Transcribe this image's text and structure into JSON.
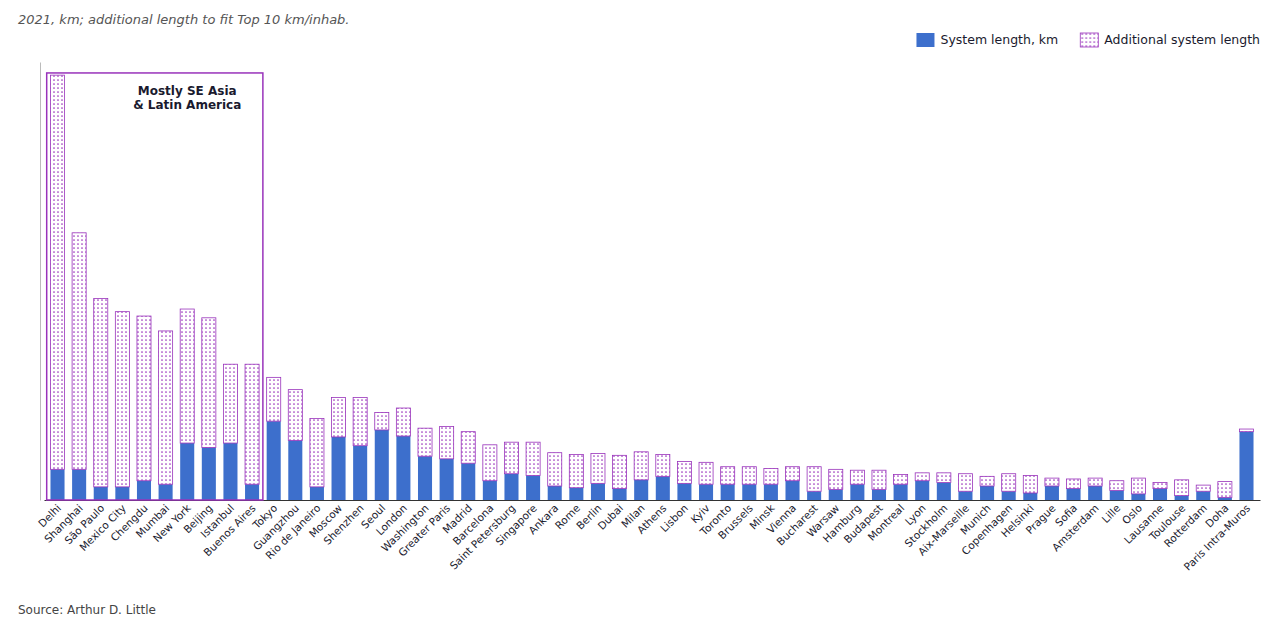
{
  "chart_data": {
    "type": "bar",
    "stacked": true,
    "subtitle": "2021, km; additional length to fit Top 10 km/inhab.",
    "source": "Source: Arthur D. Little",
    "annotations": [
      {
        "text": "Mostly SE Asia\n& Latin America",
        "from": "Delhi",
        "to": "Buenos Aires",
        "color": "#9933bb"
      }
    ],
    "categories": [
      "Delhi",
      "Shanghai",
      "São Paulo",
      "Mexico City",
      "Chengdu",
      "Mumbai",
      "New York",
      "Beijing",
      "Istanbul",
      "Buenos Aires",
      "Tokyo",
      "Guangzhou",
      "Rio de Janeiro",
      "Moscow",
      "Shenzhen",
      "Seoul",
      "London",
      "Washington",
      "Greater Paris",
      "Madrid",
      "Barcelona",
      "Saint Petersburg",
      "Singapore",
      "Ankara",
      "Rome",
      "Berlin",
      "Dubai",
      "Milan",
      "Athens",
      "Lisbon",
      "Kyiv",
      "Toronto",
      "Brussels",
      "Minsk",
      "Vienna",
      "Bucharest",
      "Warsaw",
      "Hamburg",
      "Budapest",
      "Montreal",
      "Lyon",
      "Stockholm",
      "Aix-Marseille",
      "Munich",
      "Copenhagen",
      "Helsinki",
      "Prague",
      "Sofia",
      "Amsterdam",
      "Lille",
      "Oslo",
      "Lausanne",
      "Toulouse",
      "Rotterdam",
      "Doha",
      "Paris Intra-Muros"
    ],
    "series": [
      {
        "name": "System length, km",
        "color": "#3d6fcc",
        "values": [
          35,
          35,
          15,
          15,
          22,
          18,
          65,
          60,
          65,
          18,
          90,
          68,
          15,
          72,
          62,
          80,
          73,
          50,
          47,
          42,
          22,
          30,
          28,
          16,
          14,
          19,
          13,
          23,
          27,
          19,
          18,
          18,
          18,
          18,
          22,
          10,
          12,
          18,
          12,
          18,
          22,
          20,
          10,
          16,
          10,
          8,
          16,
          13,
          16,
          11,
          7,
          13,
          5,
          10,
          3,
          78
        ]
      },
      {
        "name": "Additional system length",
        "color": "#9933bb",
        "line_style": "dotted",
        "values": [
          450,
          270,
          215,
          200,
          188,
          175,
          153,
          148,
          90,
          137,
          50,
          58,
          78,
          45,
          55,
          20,
          32,
          32,
          37,
          36,
          41,
          36,
          38,
          38,
          38,
          34,
          38,
          32,
          25,
          25,
          25,
          20,
          20,
          18,
          16,
          28,
          23,
          16,
          22,
          11,
          9,
          11,
          20,
          11,
          20,
          20,
          9,
          11,
          9,
          11,
          18,
          7,
          18,
          7,
          18,
          3
        ]
      }
    ],
    "ylim": [
      0,
      500
    ],
    "tick_labels": "x",
    "grid": false,
    "legend": "upper right"
  }
}
